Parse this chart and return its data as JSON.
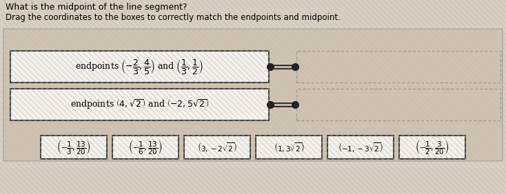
{
  "title": "What is the midpoint of the line segment?",
  "subtitle": "Drag the coordinates to the boxes to correctly match the endpoints and midpoint.",
  "bg_color_top": "#d8cfc4",
  "bg_color_stripe": "#c9bfb2",
  "panel_bg": "#cfc4b4",
  "box_bg": "#f5f2ed",
  "box_border": "#444444",
  "dashed_box_border": "#999999",
  "row1_label": "endpoints $\\left(-\\dfrac{2}{3}, \\dfrac{4}{5}\\right)$ and $\\left(\\dfrac{1}{3}, \\dfrac{1}{2}\\right)$",
  "row2_label": "endpoints $\\left(4, \\sqrt{2}\\right)$ and $\\left(-2, 5\\sqrt{2}\\right)$",
  "answer_boxes": [
    "$\\left(-\\dfrac{1}{3}, \\dfrac{13}{20}\\right)$",
    "$\\left(-\\dfrac{1}{6}, \\dfrac{13}{20}\\right)$",
    "$\\left(3, -2\\sqrt{2}\\right)$",
    "$\\left(1, 3\\sqrt{2}\\right)$",
    "$\\left(-1, -3\\sqrt{2}\\right)$",
    "$\\left(-\\dfrac{1}{2}, \\dfrac{3}{20}\\right)$"
  ]
}
